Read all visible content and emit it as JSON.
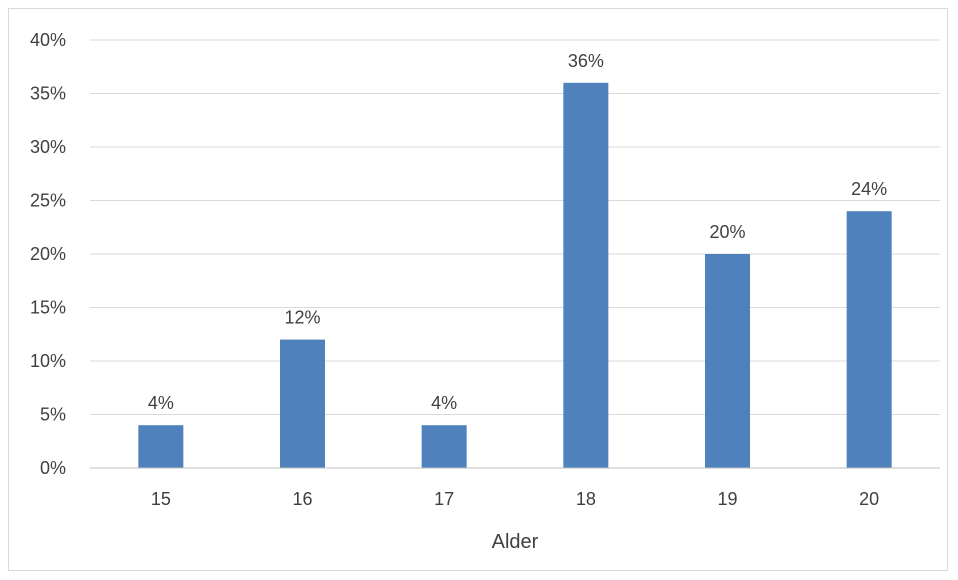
{
  "chart_data": {
    "type": "bar",
    "title": "",
    "xlabel": "Alder",
    "ylabel": "",
    "categories": [
      "15",
      "16",
      "17",
      "18",
      "19",
      "20"
    ],
    "values": [
      4,
      12,
      4,
      36,
      20,
      24
    ],
    "value_labels": [
      "4%",
      "12%",
      "4%",
      "36%",
      "20%",
      "24%"
    ],
    "ylim": [
      0,
      40
    ],
    "yticks": [
      0,
      5,
      10,
      15,
      20,
      25,
      30,
      35,
      40
    ],
    "ytick_labels": [
      "0%",
      "5%",
      "10%",
      "15%",
      "20%",
      "25%",
      "30%",
      "35%",
      "40%"
    ],
    "grid": true,
    "legend": "none",
    "colors": {
      "bar": "#4f81bd",
      "grid": "#d9d9d9",
      "axis": "#bfbfbf",
      "text": "#404040"
    }
  }
}
